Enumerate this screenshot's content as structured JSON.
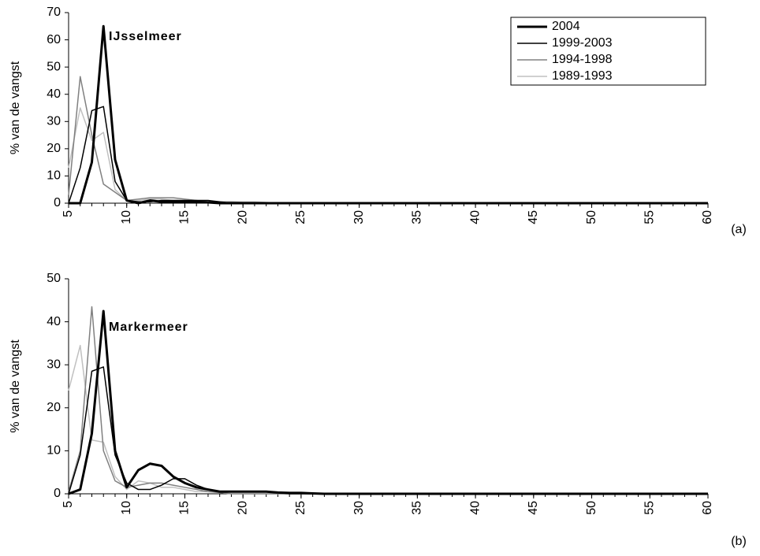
{
  "chart_data": [
    {
      "type": "line",
      "title": "IJsselmeer",
      "ylabel": "% van de vangst",
      "label": "(a)",
      "legend": "upper right",
      "line_width": [
        3,
        1.5,
        1.5,
        1.5
      ],
      "x": [
        5,
        6,
        7,
        8,
        9,
        10,
        11,
        12,
        13,
        14,
        15,
        16,
        17,
        18,
        19,
        20,
        21,
        22,
        23,
        24,
        25,
        26,
        27,
        28,
        29,
        30,
        31,
        32,
        33,
        34,
        35,
        36,
        37,
        38,
        39,
        40,
        41,
        42,
        43,
        44,
        45,
        46,
        47,
        48,
        49,
        50,
        51,
        52,
        53,
        54,
        55,
        56,
        57,
        58,
        59,
        60
      ],
      "xlim": [
        5,
        60
      ],
      "xticks": [
        5,
        10,
        15,
        20,
        25,
        30,
        35,
        40,
        45,
        50,
        55,
        60
      ],
      "ylim": [
        0,
        70
      ],
      "yticks": [
        0,
        10,
        20,
        30,
        40,
        50,
        60,
        70
      ],
      "series": [
        {
          "name": "2004",
          "color": "#000000",
          "values": [
            0,
            0,
            15,
            65,
            16,
            1,
            0,
            1,
            0.5,
            0.5,
            0.5,
            0.5,
            0.3,
            0,
            0,
            0,
            0,
            0,
            0,
            0,
            0,
            0,
            0,
            0,
            0,
            0,
            0,
            0,
            0,
            0,
            0,
            0,
            0,
            0,
            0,
            0,
            0,
            0,
            0,
            0,
            0,
            0,
            0,
            0,
            0,
            0,
            0,
            0,
            0,
            0,
            0,
            0,
            0,
            0,
            0,
            0
          ]
        },
        {
          "name": "1999-2003",
          "color": "#000000",
          "values": [
            0,
            13,
            34,
            35.5,
            8,
            1,
            0.5,
            0.5,
            1,
            1,
            1,
            1,
            1,
            0.5,
            0,
            0,
            0,
            0,
            0,
            0,
            0,
            0,
            0,
            0,
            0,
            0,
            0,
            0,
            0,
            0,
            0,
            0,
            0,
            0,
            0,
            0,
            0,
            0,
            0,
            0,
            0,
            0,
            0,
            0,
            0,
            0,
            0,
            0,
            0,
            0,
            0,
            0,
            0,
            0,
            0,
            0
          ]
        },
        {
          "name": "1994-1998",
          "color": "#808080",
          "values": [
            3,
            46.5,
            25,
            7,
            4,
            1,
            1.5,
            2,
            2,
            2,
            1.5,
            1,
            0.5,
            0.5,
            0.5,
            0.3,
            0.3,
            0.2,
            0,
            0,
            0,
            0,
            0,
            0,
            0,
            0,
            0,
            0,
            0,
            0,
            0,
            0,
            0,
            0,
            0,
            0,
            0,
            0,
            0,
            0,
            0,
            0,
            0,
            0,
            0,
            0,
            0,
            0,
            0,
            0,
            0,
            0,
            0,
            0,
            0,
            0
          ]
        },
        {
          "name": "1989-1993",
          "color": "#c0c0c0",
          "values": [
            13,
            35,
            23,
            26,
            5,
            1,
            1,
            1.5,
            1.5,
            1,
            1,
            0.5,
            0.5,
            0.5,
            0.5,
            0.5,
            0.5,
            0.3,
            0,
            0,
            0,
            0,
            0,
            0,
            0,
            0,
            0,
            0,
            0,
            0,
            0,
            0,
            0,
            0,
            0,
            0,
            0,
            0,
            0,
            0,
            0,
            0,
            0,
            0,
            0,
            0,
            0,
            0,
            0,
            0,
            0,
            0,
            0,
            0,
            0,
            0
          ]
        }
      ]
    },
    {
      "type": "line",
      "title": "Markermeer",
      "ylabel": "% van de vangst",
      "label": "(b)",
      "line_width": [
        3,
        1.5,
        1.5,
        1.5
      ],
      "x": [
        5,
        6,
        7,
        8,
        9,
        10,
        11,
        12,
        13,
        14,
        15,
        16,
        17,
        18,
        19,
        20,
        21,
        22,
        23,
        24,
        25,
        26,
        27,
        28,
        29,
        30,
        31,
        32,
        33,
        34,
        35,
        36,
        37,
        38,
        39,
        40,
        41,
        42,
        43,
        44,
        45,
        46,
        47,
        48,
        49,
        50,
        51,
        52,
        53,
        54,
        55,
        56,
        57,
        58,
        59,
        60
      ],
      "xlim": [
        5,
        60
      ],
      "xticks": [
        5,
        10,
        15,
        20,
        25,
        30,
        35,
        40,
        45,
        50,
        55,
        60
      ],
      "ylim": [
        0,
        50
      ],
      "yticks": [
        0,
        10,
        20,
        30,
        40,
        50
      ],
      "series": [
        {
          "color": "#000000",
          "values": [
            0,
            1,
            14,
            42.5,
            10,
            1.5,
            5.5,
            7,
            6.5,
            4,
            2.5,
            1.5,
            1,
            0.5,
            0.5,
            0.5,
            0.5,
            0.5,
            0.3,
            0.2,
            0.2,
            0.1,
            0,
            0,
            0,
            0,
            0,
            0,
            0,
            0,
            0,
            0,
            0,
            0,
            0,
            0,
            0,
            0,
            0,
            0,
            0,
            0,
            0,
            0,
            0,
            0,
            0,
            0,
            0,
            0,
            0,
            0,
            0,
            0,
            0,
            0
          ]
        },
        {
          "color": "#000000",
          "values": [
            0,
            9,
            28.5,
            29.5,
            9,
            2.5,
            1,
            1,
            2,
            3.5,
            3.5,
            2,
            1,
            0.5,
            0.5,
            0.5,
            0.5,
            0.5,
            0.3,
            0,
            0,
            0,
            0,
            0,
            0,
            0,
            0,
            0,
            0,
            0,
            0,
            0,
            0,
            0,
            0,
            0,
            0,
            0,
            0,
            0,
            0,
            0,
            0,
            0,
            0,
            0,
            0,
            0,
            0,
            0,
            0,
            0,
            0,
            0,
            0,
            0
          ]
        },
        {
          "color": "#808080",
          "values": [
            0.5,
            10,
            43.5,
            10,
            3,
            1.5,
            2,
            2.5,
            2.5,
            2,
            1.5,
            1,
            0.5,
            0.3,
            0,
            0,
            0,
            0,
            0,
            0,
            0,
            0,
            0,
            0,
            0,
            0,
            0,
            0,
            0,
            0,
            0,
            0,
            0,
            0,
            0,
            0,
            0,
            0,
            0,
            0,
            0,
            0,
            0,
            0,
            0,
            0,
            0,
            0,
            0,
            0,
            0,
            0,
            0,
            0,
            0,
            0
          ]
        },
        {
          "color": "#c0c0c0",
          "values": [
            24,
            34.5,
            12.5,
            12,
            4,
            1,
            3,
            2.5,
            1.5,
            1.5,
            1,
            0.5,
            0.5,
            0.3,
            0,
            0,
            0,
            0,
            0,
            0,
            0,
            0,
            0,
            0,
            0,
            0,
            0,
            0,
            0,
            0,
            0,
            0,
            0,
            0,
            0,
            0,
            0,
            0,
            0,
            0,
            0,
            0,
            0,
            0,
            0,
            0,
            0,
            0,
            0,
            0,
            0,
            0,
            0,
            0,
            0,
            0
          ]
        }
      ]
    }
  ]
}
